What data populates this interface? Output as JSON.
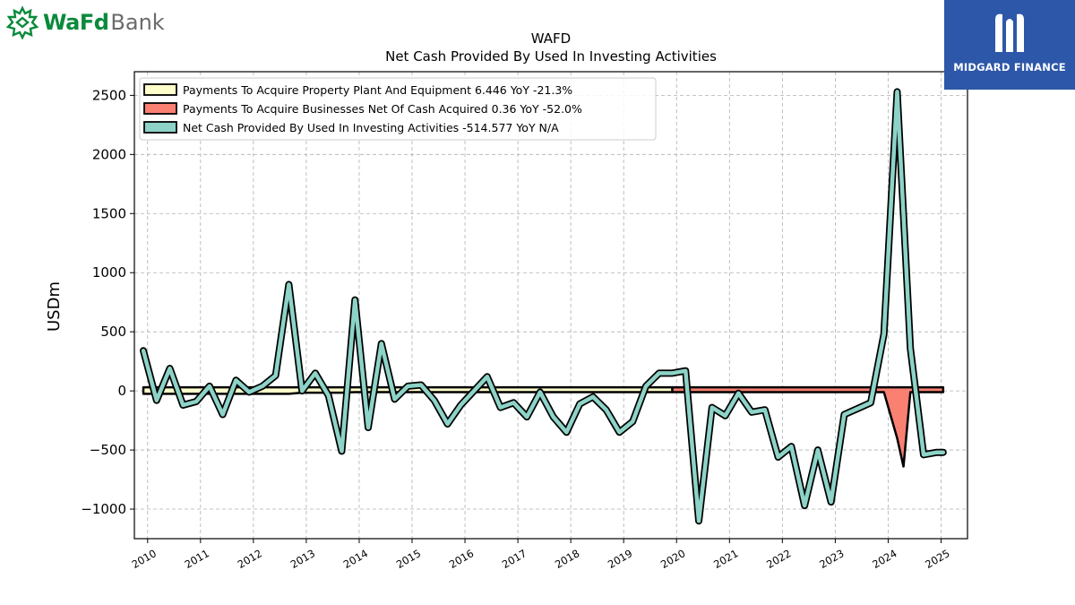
{
  "header": {
    "left_logo": {
      "mark": "wafd-leaf-icon",
      "text_bold": "WaFd",
      "text_regular": "Bank"
    },
    "right_logo": {
      "mark": "midgard-m-icon",
      "text": "MIDGARD FINANCE",
      "background": "#2d57a8"
    }
  },
  "chart_data": {
    "type": "line",
    "title": "WAFD",
    "subtitle": "Net Cash Provided By Used In Investing Activities",
    "xlabel": "",
    "ylabel": "USDm",
    "x_ticks": [
      "2010",
      "2011",
      "2012",
      "2013",
      "2014",
      "2015",
      "2016",
      "2017",
      "2018",
      "2019",
      "2020",
      "2021",
      "2022",
      "2023",
      "2024",
      "2025"
    ],
    "y_ticks": [
      "2500",
      "2000",
      "1500",
      "1000",
      "500",
      "0",
      "−500",
      "−1000"
    ],
    "y_tick_values": [
      2500,
      2000,
      1500,
      1000,
      500,
      0,
      -500,
      -1000
    ],
    "xlim": [
      2009.75,
      2025.5
    ],
    "ylim": [
      -1250,
      2700
    ],
    "grid": true,
    "legend_position": "top-left",
    "series": [
      {
        "name": "Payments To Acquire Property Plant And Equipment  6.446 YoY -21.3%",
        "kind": "band",
        "color": "#ffffcc",
        "x": [
          2009.92,
          2010.17,
          2010.42,
          2010.67,
          2010.92,
          2011.17,
          2011.42,
          2011.67,
          2011.92,
          2012.17,
          2012.42,
          2012.67,
          2012.92,
          2013.17,
          2013.42,
          2013.67,
          2013.92,
          2014.17,
          2014.42,
          2014.67,
          2014.92,
          2015.17,
          2015.42,
          2015.67,
          2015.92,
          2016.17,
          2016.42,
          2016.67,
          2016.92,
          2017.17,
          2017.42,
          2017.67,
          2017.92,
          2018.17,
          2018.42,
          2018.67,
          2018.92,
          2019.17,
          2019.42,
          2019.67,
          2019.92
        ],
        "values": [
          -25,
          -25,
          -25,
          -25,
          -25,
          -25,
          -25,
          -25,
          -25,
          -25,
          -25,
          -25,
          -15,
          -15,
          -15,
          -15,
          -10,
          -10,
          -10,
          -10,
          -10,
          -10,
          -10,
          -10,
          -10,
          -10,
          -10,
          -10,
          -10,
          -10,
          -10,
          -10,
          -10,
          -10,
          -10,
          -10,
          -10,
          -10,
          -10,
          -10,
          -10
        ]
      },
      {
        "name": "Payments To Acquire Businesses Net Of Cash Acquired  0.36 YoY -52.0%",
        "kind": "band",
        "color": "#fa8072",
        "x": [
          2019.92,
          2020.17,
          2020.42,
          2020.67,
          2020.92,
          2021.17,
          2021.42,
          2021.67,
          2021.92,
          2022.17,
          2022.42,
          2022.67,
          2022.92,
          2023.17,
          2023.42,
          2023.67,
          2023.92,
          2024.17,
          2024.29,
          2024.42,
          2024.67,
          2024.92,
          2025.04
        ],
        "values": [
          -10,
          -10,
          -10,
          -10,
          -10,
          -10,
          -10,
          -10,
          -10,
          -10,
          -10,
          -10,
          -10,
          -10,
          -10,
          -10,
          -10,
          -400,
          -640,
          -10,
          -10,
          -10,
          -10
        ]
      },
      {
        "name": "Net Cash Provided By Used In Investing Activities  -514.577 YoY N/A",
        "kind": "line",
        "color": "#8dd3c7",
        "x": [
          2009.92,
          2010.17,
          2010.42,
          2010.67,
          2010.92,
          2011.17,
          2011.42,
          2011.67,
          2011.92,
          2012.17,
          2012.42,
          2012.67,
          2012.92,
          2013.17,
          2013.42,
          2013.67,
          2013.92,
          2014.17,
          2014.42,
          2014.67,
          2014.92,
          2015.17,
          2015.42,
          2015.67,
          2015.92,
          2016.17,
          2016.42,
          2016.67,
          2016.92,
          2017.17,
          2017.42,
          2017.67,
          2017.92,
          2018.17,
          2018.42,
          2018.67,
          2018.92,
          2019.17,
          2019.42,
          2019.67,
          2019.92,
          2020.17,
          2020.42,
          2020.67,
          2020.92,
          2021.17,
          2021.42,
          2021.67,
          2021.92,
          2022.17,
          2022.42,
          2022.67,
          2022.92,
          2023.17,
          2023.42,
          2023.67,
          2023.92,
          2024.17,
          2024.42,
          2024.67,
          2024.92,
          2025.04
        ],
        "values": [
          340,
          -80,
          190,
          -120,
          -90,
          40,
          -200,
          90,
          -10,
          40,
          130,
          900,
          0,
          150,
          -40,
          -510,
          770,
          -310,
          400,
          -70,
          40,
          50,
          -80,
          -280,
          -120,
          0,
          120,
          -140,
          -100,
          -220,
          -10,
          -220,
          -350,
          -110,
          -50,
          -160,
          -350,
          -260,
          40,
          150,
          150,
          170,
          -1100,
          -140,
          -210,
          -20,
          -180,
          -160,
          -560,
          -470,
          -970,
          -500,
          -940,
          -200,
          -150,
          -100,
          480,
          2530,
          360,
          -540,
          -520,
          -520
        ]
      }
    ]
  }
}
